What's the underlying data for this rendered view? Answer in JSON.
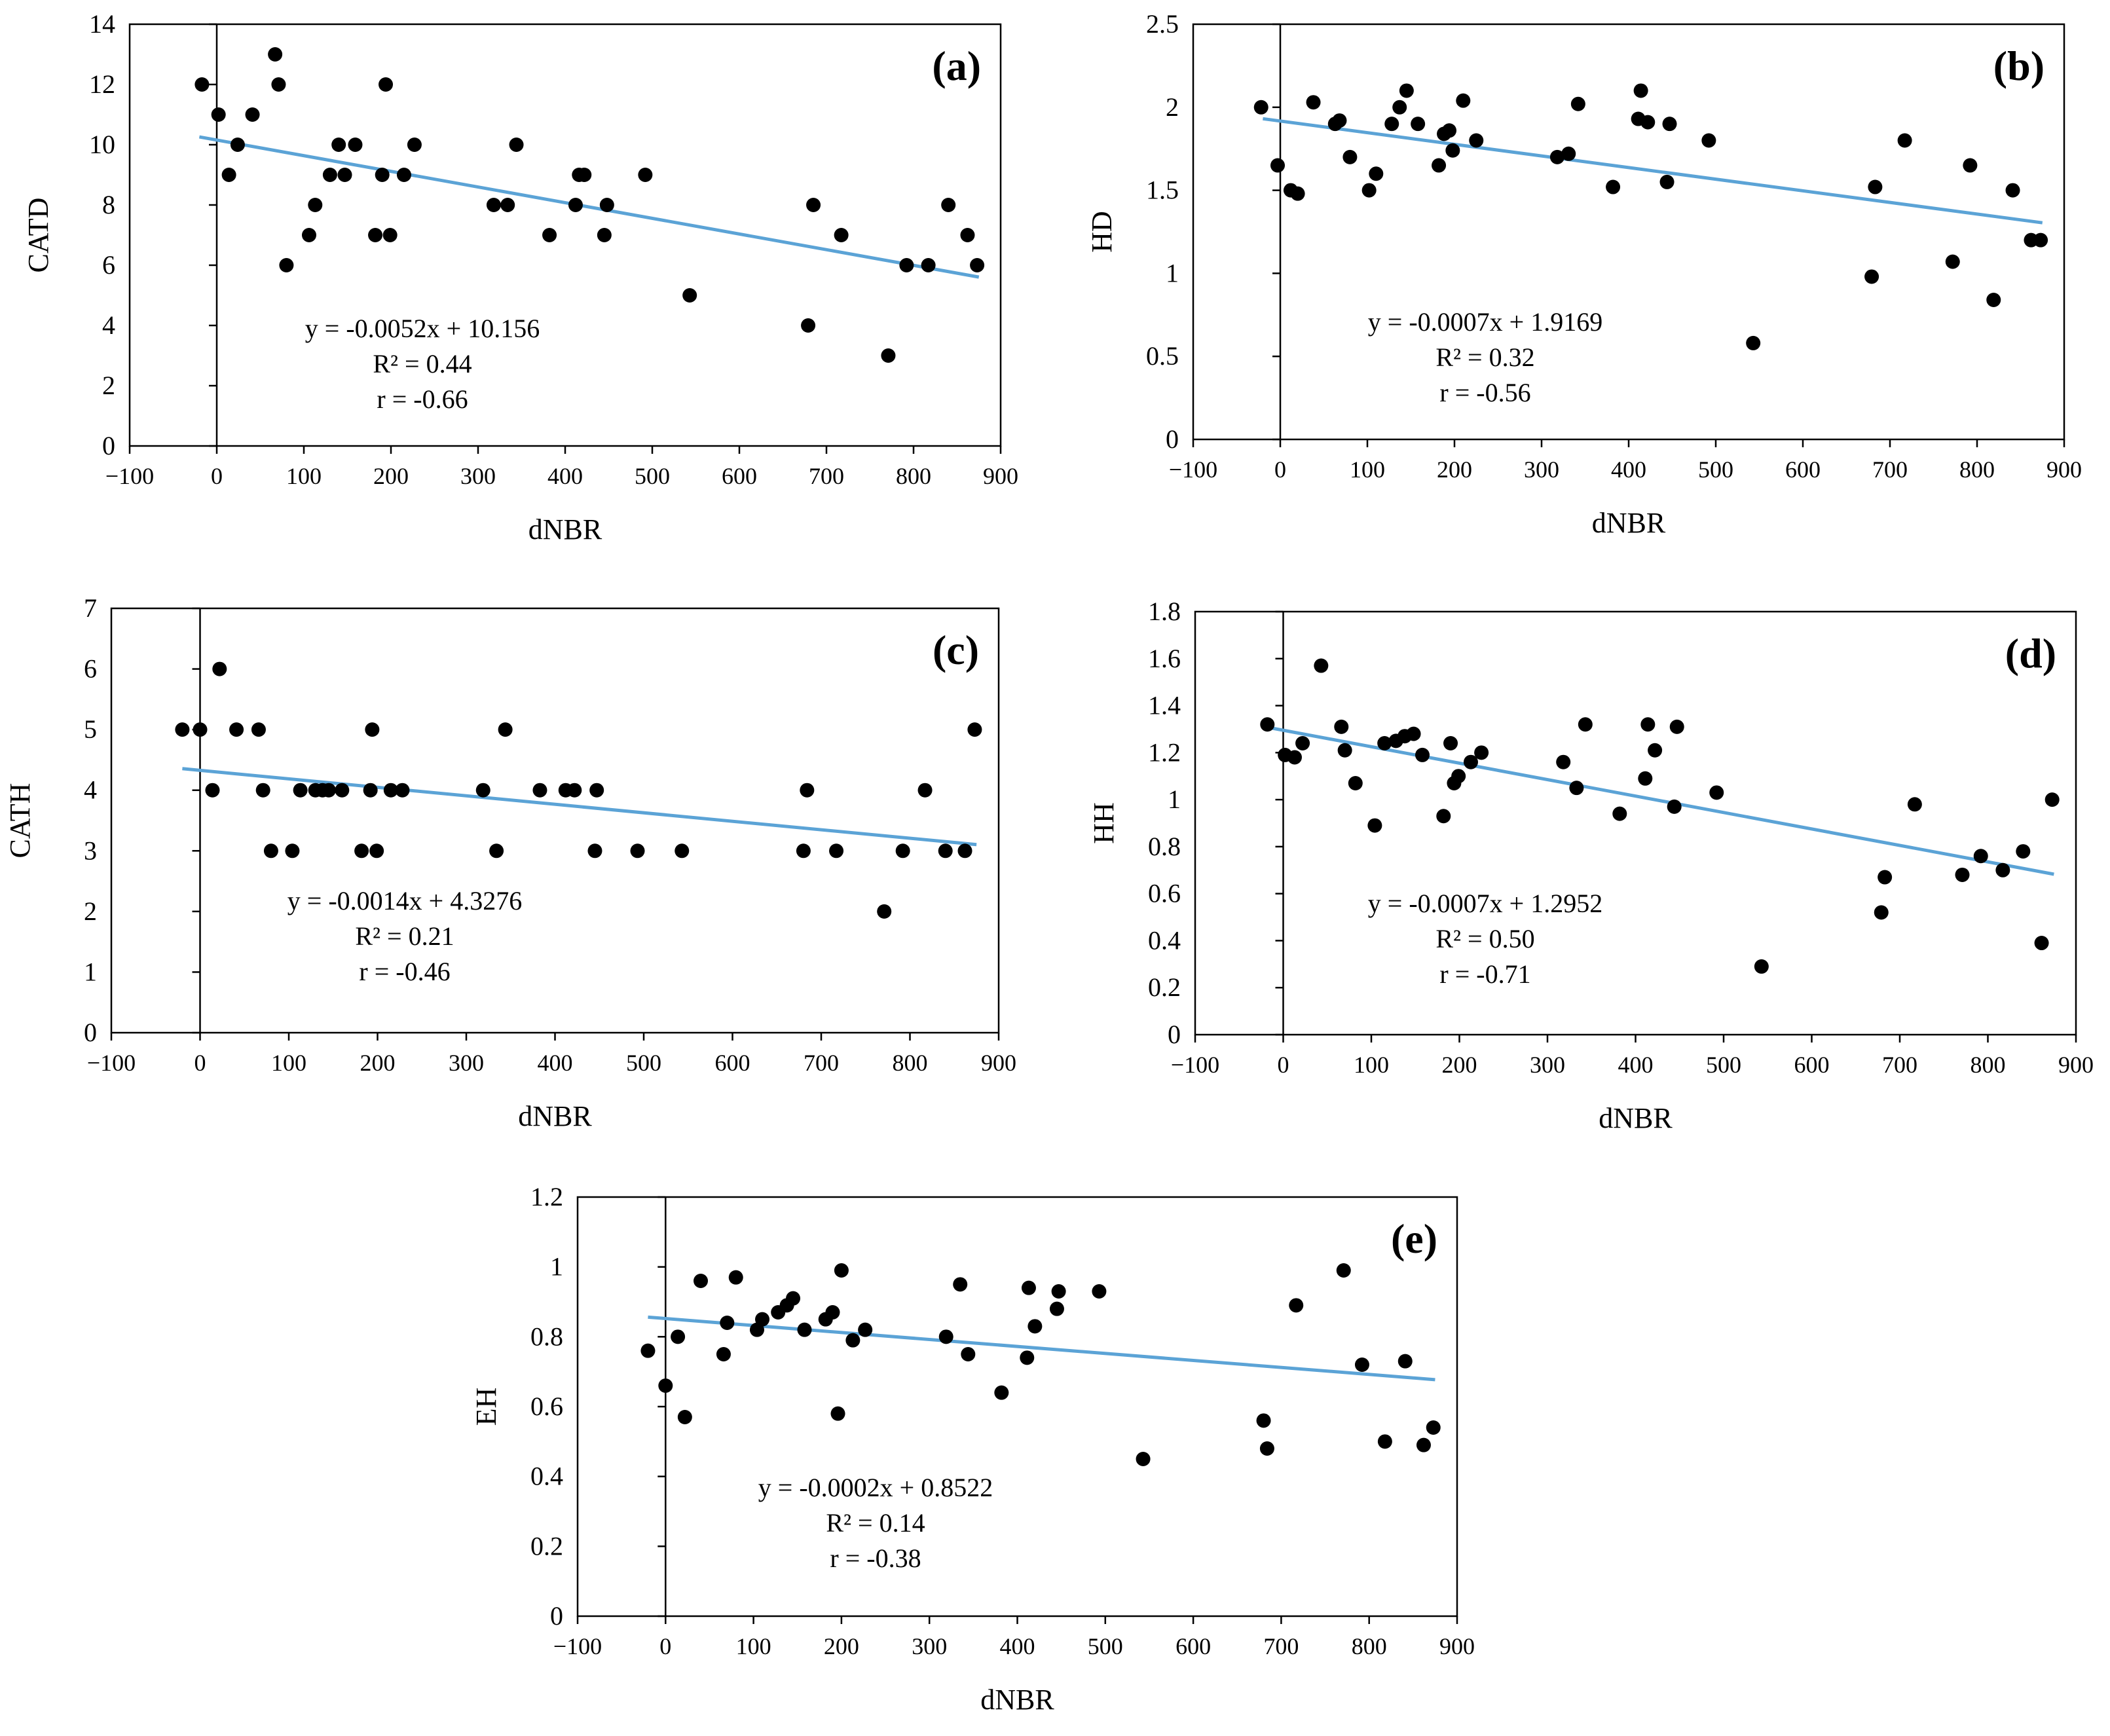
{
  "chart_data": [
    {
      "id": "a",
      "type": "scatter",
      "panel_label": "(a)",
      "xlabel": "dNBR",
      "ylabel": "CATD",
      "xlim": [
        -100,
        900
      ],
      "ylim": [
        0,
        14
      ],
      "xticks": [
        -100,
        0,
        100,
        200,
        300,
        400,
        500,
        600,
        700,
        800,
        900
      ],
      "yticks": [
        0,
        2,
        4,
        6,
        8,
        10,
        12,
        14
      ],
      "tick_labels_x": [
        "−100",
        "0",
        "100",
        "200",
        "300",
        "400",
        "500",
        "600",
        "700",
        "800",
        "900"
      ],
      "tick_labels_y": [
        "0",
        "2",
        "4",
        "6",
        "8",
        "10",
        "12",
        "14"
      ],
      "trendline": {
        "slope": -0.0052,
        "intercept": 10.156,
        "x_range": [
          -20,
          875
        ]
      },
      "annotations": [
        "y = -0.0052x + 10.156",
        "R² = 0.44",
        "r = -0.66"
      ],
      "points": [
        [
          -17,
          12
        ],
        [
          2,
          11
        ],
        [
          14,
          9
        ],
        [
          24,
          10
        ],
        [
          41,
          11
        ],
        [
          67,
          13
        ],
        [
          71,
          12
        ],
        [
          80,
          6
        ],
        [
          106,
          7
        ],
        [
          113,
          8
        ],
        [
          130,
          9
        ],
        [
          140,
          10
        ],
        [
          147,
          9
        ],
        [
          159,
          10
        ],
        [
          182,
          7
        ],
        [
          190,
          9
        ],
        [
          194,
          12
        ],
        [
          199,
          7
        ],
        [
          215,
          9
        ],
        [
          227,
          10
        ],
        [
          318,
          8
        ],
        [
          334,
          8
        ],
        [
          344,
          10
        ],
        [
          382,
          7
        ],
        [
          412,
          8
        ],
        [
          416,
          9
        ],
        [
          422,
          9
        ],
        [
          445,
          7
        ],
        [
          448,
          8
        ],
        [
          492,
          9
        ],
        [
          543,
          5
        ],
        [
          679,
          4
        ],
        [
          685,
          8
        ],
        [
          717,
          7
        ],
        [
          771,
          3
        ],
        [
          792,
          6
        ],
        [
          817,
          6
        ],
        [
          840,
          8
        ],
        [
          862,
          7
        ],
        [
          873,
          6
        ]
      ]
    },
    {
      "id": "b",
      "type": "scatter",
      "panel_label": "(b)",
      "xlabel": "dNBR",
      "ylabel": "HD",
      "xlim": [
        -100,
        900
      ],
      "ylim": [
        0,
        2.5
      ],
      "xticks": [
        -100,
        0,
        100,
        200,
        300,
        400,
        500,
        600,
        700,
        800,
        900
      ],
      "yticks": [
        0,
        0.5,
        1,
        1.5,
        2,
        2.5
      ],
      "tick_labels_x": [
        "−100",
        "0",
        "100",
        "200",
        "300",
        "400",
        "500",
        "600",
        "700",
        "800",
        "900"
      ],
      "tick_labels_y": [
        "0",
        "0.5",
        "1",
        "1.5",
        "2",
        "2.5"
      ],
      "trendline": {
        "slope": -0.0007,
        "intercept": 1.9169,
        "x_range": [
          -20,
          875
        ]
      },
      "annotations": [
        "y = -0.0007x + 1.9169",
        "R² = 0.32",
        "r = -0.56"
      ],
      "points": [
        [
          -22,
          2.0
        ],
        [
          -3,
          1.65
        ],
        [
          12,
          1.5
        ],
        [
          20,
          1.48
        ],
        [
          38,
          2.03
        ],
        [
          63,
          1.9
        ],
        [
          68,
          1.92
        ],
        [
          80,
          1.7
        ],
        [
          102,
          1.5
        ],
        [
          110,
          1.6
        ],
        [
          128,
          1.9
        ],
        [
          137,
          2.0
        ],
        [
          145,
          2.1
        ],
        [
          158,
          1.9
        ],
        [
          182,
          1.65
        ],
        [
          188,
          1.84
        ],
        [
          194,
          1.86
        ],
        [
          198,
          1.74
        ],
        [
          210,
          2.04
        ],
        [
          225,
          1.8
        ],
        [
          318,
          1.7
        ],
        [
          331,
          1.72
        ],
        [
          342,
          2.02
        ],
        [
          382,
          1.52
        ],
        [
          411,
          1.93
        ],
        [
          414,
          2.1
        ],
        [
          422,
          1.91
        ],
        [
          444,
          1.55
        ],
        [
          447,
          1.9
        ],
        [
          492,
          1.8
        ],
        [
          543,
          0.58
        ],
        [
          679,
          0.98
        ],
        [
          683,
          1.52
        ],
        [
          717,
          1.8
        ],
        [
          772,
          1.07
        ],
        [
          792,
          1.65
        ],
        [
          819,
          0.84
        ],
        [
          841,
          1.5
        ],
        [
          862,
          1.2
        ],
        [
          873,
          1.2
        ]
      ]
    },
    {
      "id": "c",
      "type": "scatter",
      "panel_label": "(c)",
      "xlabel": "dNBR",
      "ylabel": "CATH",
      "xlim": [
        -100,
        900
      ],
      "ylim": [
        0,
        7
      ],
      "xticks": [
        -100,
        0,
        100,
        200,
        300,
        400,
        500,
        600,
        700,
        800,
        900
      ],
      "yticks": [
        0,
        1,
        2,
        3,
        4,
        5,
        6,
        7
      ],
      "tick_labels_x": [
        "−100",
        "0",
        "100",
        "200",
        "300",
        "400",
        "500",
        "600",
        "700",
        "800",
        "900"
      ],
      "tick_labels_y": [
        "0",
        "1",
        "2",
        "3",
        "4",
        "5",
        "6",
        "7"
      ],
      "trendline": {
        "slope": -0.0014,
        "intercept": 4.3276,
        "x_range": [
          -20,
          875
        ]
      },
      "annotations": [
        "y = -0.0014x + 4.3276",
        "R² = 0.21",
        "r = -0.46"
      ],
      "points": [
        [
          -20,
          5
        ],
        [
          0,
          5
        ],
        [
          14,
          4
        ],
        [
          22,
          6
        ],
        [
          41,
          5
        ],
        [
          66,
          5
        ],
        [
          71,
          4
        ],
        [
          80,
          3
        ],
        [
          104,
          3
        ],
        [
          113,
          4
        ],
        [
          130,
          4
        ],
        [
          138,
          4
        ],
        [
          145,
          4
        ],
        [
          160,
          4
        ],
        [
          182,
          3
        ],
        [
          192,
          4
        ],
        [
          194,
          5
        ],
        [
          199,
          3
        ],
        [
          215,
          4
        ],
        [
          228,
          4
        ],
        [
          319,
          4
        ],
        [
          334,
          3
        ],
        [
          344,
          5
        ],
        [
          383,
          4
        ],
        [
          412,
          4
        ],
        [
          422,
          4
        ],
        [
          445,
          3
        ],
        [
          447,
          4
        ],
        [
          493,
          3
        ],
        [
          543,
          3
        ],
        [
          680,
          3
        ],
        [
          684,
          4
        ],
        [
          717,
          3
        ],
        [
          771,
          2
        ],
        [
          792,
          3
        ],
        [
          817,
          4
        ],
        [
          840,
          3
        ],
        [
          862,
          3
        ],
        [
          873,
          5
        ]
      ]
    },
    {
      "id": "d",
      "type": "scatter",
      "panel_label": "(d)",
      "xlabel": "dNBR",
      "ylabel": "HH",
      "xlim": [
        -100,
        900
      ],
      "ylim": [
        0,
        1.8
      ],
      "xticks": [
        -100,
        0,
        100,
        200,
        300,
        400,
        500,
        600,
        700,
        800,
        900
      ],
      "yticks": [
        0,
        0.2,
        0.4,
        0.6,
        0.8,
        1,
        1.2,
        1.4,
        1.6,
        1.8
      ],
      "tick_labels_x": [
        "−100",
        "0",
        "100",
        "200",
        "300",
        "400",
        "500",
        "600",
        "700",
        "800",
        "900"
      ],
      "tick_labels_y": [
        "0",
        "0.2",
        "0.4",
        "0.6",
        "0.8",
        "1",
        "1.2",
        "1.4",
        "1.6",
        "1.8"
      ],
      "trendline": {
        "slope": -0.0007,
        "intercept": 1.2952,
        "x_range": [
          -20,
          875
        ]
      },
      "annotations": [
        "y = -0.0007x + 1.2952",
        "R² = 0.50",
        "r = -0.71"
      ],
      "points": [
        [
          -18,
          1.32
        ],
        [
          2,
          1.19
        ],
        [
          13,
          1.18
        ],
        [
          22,
          1.24
        ],
        [
          43,
          1.57
        ],
        [
          66,
          1.31
        ],
        [
          70,
          1.21
        ],
        [
          82,
          1.07
        ],
        [
          104,
          0.89
        ],
        [
          115,
          1.24
        ],
        [
          128,
          1.25
        ],
        [
          138,
          1.27
        ],
        [
          148,
          1.28
        ],
        [
          158,
          1.19
        ],
        [
          182,
          0.93
        ],
        [
          190,
          1.24
        ],
        [
          194,
          1.07
        ],
        [
          199,
          1.1
        ],
        [
          213,
          1.16
        ],
        [
          225,
          1.2
        ],
        [
          318,
          1.16
        ],
        [
          333,
          1.05
        ],
        [
          343,
          1.32
        ],
        [
          382,
          0.94
        ],
        [
          411,
          1.09
        ],
        [
          414,
          1.32
        ],
        [
          422,
          1.21
        ],
        [
          444,
          0.97
        ],
        [
          447,
          1.31
        ],
        [
          492,
          1.03
        ],
        [
          543,
          0.29
        ],
        [
          679,
          0.52
        ],
        [
          683,
          0.67
        ],
        [
          717,
          0.98
        ],
        [
          771,
          0.68
        ],
        [
          792,
          0.76
        ],
        [
          817,
          0.7
        ],
        [
          840,
          0.78
        ],
        [
          861,
          0.39
        ],
        [
          873,
          1.0
        ]
      ]
    },
    {
      "id": "e",
      "type": "scatter",
      "panel_label": "(e)",
      "xlabel": "dNBR",
      "ylabel": "EH",
      "xlim": [
        -100,
        900
      ],
      "ylim": [
        0,
        1.2
      ],
      "xticks": [
        -100,
        0,
        100,
        200,
        300,
        400,
        500,
        600,
        700,
        800,
        900
      ],
      "yticks": [
        0,
        0.2,
        0.4,
        0.6,
        0.8,
        1,
        1.2
      ],
      "tick_labels_x": [
        "−100",
        "0",
        "100",
        "200",
        "300",
        "400",
        "500",
        "600",
        "700",
        "800",
        "900"
      ],
      "tick_labels_y": [
        "0",
        "0.2",
        "0.4",
        "0.6",
        "0.8",
        "1",
        "1.2"
      ],
      "trendline": {
        "slope": -0.0002,
        "intercept": 0.8522,
        "x_range": [
          -20,
          875
        ]
      },
      "annotations": [
        "y = -0.0002x + 0.8522",
        "R² = 0.14",
        "r = -0.38"
      ],
      "points": [
        [
          -20,
          0.76
        ],
        [
          0,
          0.66
        ],
        [
          14,
          0.8
        ],
        [
          22,
          0.57
        ],
        [
          40,
          0.96
        ],
        [
          66,
          0.75
        ],
        [
          70,
          0.84
        ],
        [
          80,
          0.97
        ],
        [
          104,
          0.82
        ],
        [
          110,
          0.85
        ],
        [
          128,
          0.87
        ],
        [
          138,
          0.89
        ],
        [
          145,
          0.91
        ],
        [
          158,
          0.82
        ],
        [
          182,
          0.85
        ],
        [
          190,
          0.87
        ],
        [
          196,
          0.58
        ],
        [
          200,
          0.99
        ],
        [
          213,
          0.79
        ],
        [
          227,
          0.82
        ],
        [
          319,
          0.8
        ],
        [
          335,
          0.95
        ],
        [
          344,
          0.75
        ],
        [
          382,
          0.64
        ],
        [
          411,
          0.74
        ],
        [
          413,
          0.94
        ],
        [
          420,
          0.83
        ],
        [
          445,
          0.88
        ],
        [
          447,
          0.93
        ],
        [
          493,
          0.93
        ],
        [
          543,
          0.45
        ],
        [
          680,
          0.56
        ],
        [
          684,
          0.48
        ],
        [
          717,
          0.89
        ],
        [
          771,
          0.99
        ],
        [
          792,
          0.72
        ],
        [
          818,
          0.5
        ],
        [
          841,
          0.73
        ],
        [
          862,
          0.49
        ],
        [
          873,
          0.54
        ]
      ]
    }
  ],
  "style": {
    "axis_color": "#000000",
    "trendline_color": "#5ba3d6",
    "marker_color": "#000000"
  }
}
